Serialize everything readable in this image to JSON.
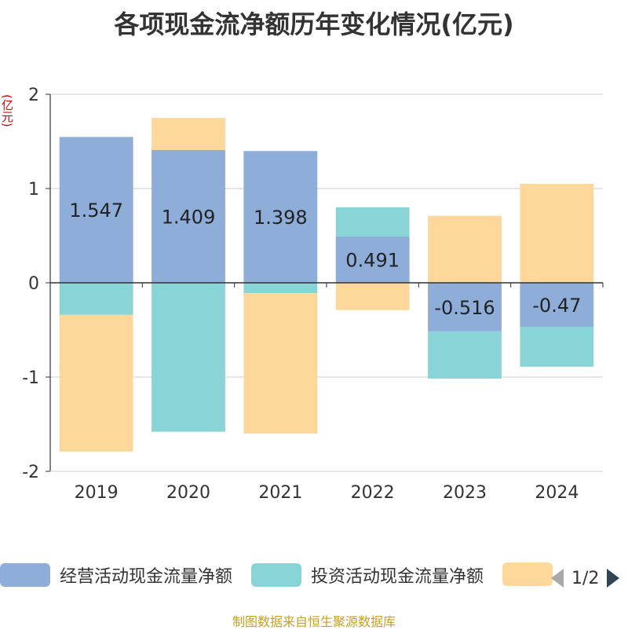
{
  "chart_data": {
    "type": "bar",
    "stacked": true,
    "title": "各项现金流净额历年变化情况(亿元)",
    "ylabel": "(亿元)",
    "categories": [
      "2019",
      "2020",
      "2021",
      "2022",
      "2023",
      "2024"
    ],
    "ylim": [
      -2,
      2
    ],
    "yticks": [
      2,
      1,
      0,
      -1,
      -2
    ],
    "grid": true,
    "legend_position": "bottom",
    "series": [
      {
        "name": "经营活动现金流量净额",
        "color": "#8eadd9",
        "values": [
          1.547,
          1.409,
          1.398,
          0.491,
          -0.516,
          -0.47
        ],
        "data_labels": [
          "1.547",
          "1.409",
          "1.398",
          "0.491",
          "-0.516",
          "-0.47"
        ]
      },
      {
        "name": "投资活动现金流量净额",
        "color": "#88d4d6",
        "values": [
          -0.34,
          -1.58,
          -0.11,
          0.31,
          -0.5,
          -0.42
        ]
      },
      {
        "name": "",
        "color": "#fed89a",
        "values": [
          -1.45,
          0.34,
          -1.49,
          -0.29,
          0.71,
          1.05
        ]
      }
    ]
  },
  "legend": {
    "page_indicator": "1/2"
  },
  "source": "制图数据来自恒生聚源数据库"
}
